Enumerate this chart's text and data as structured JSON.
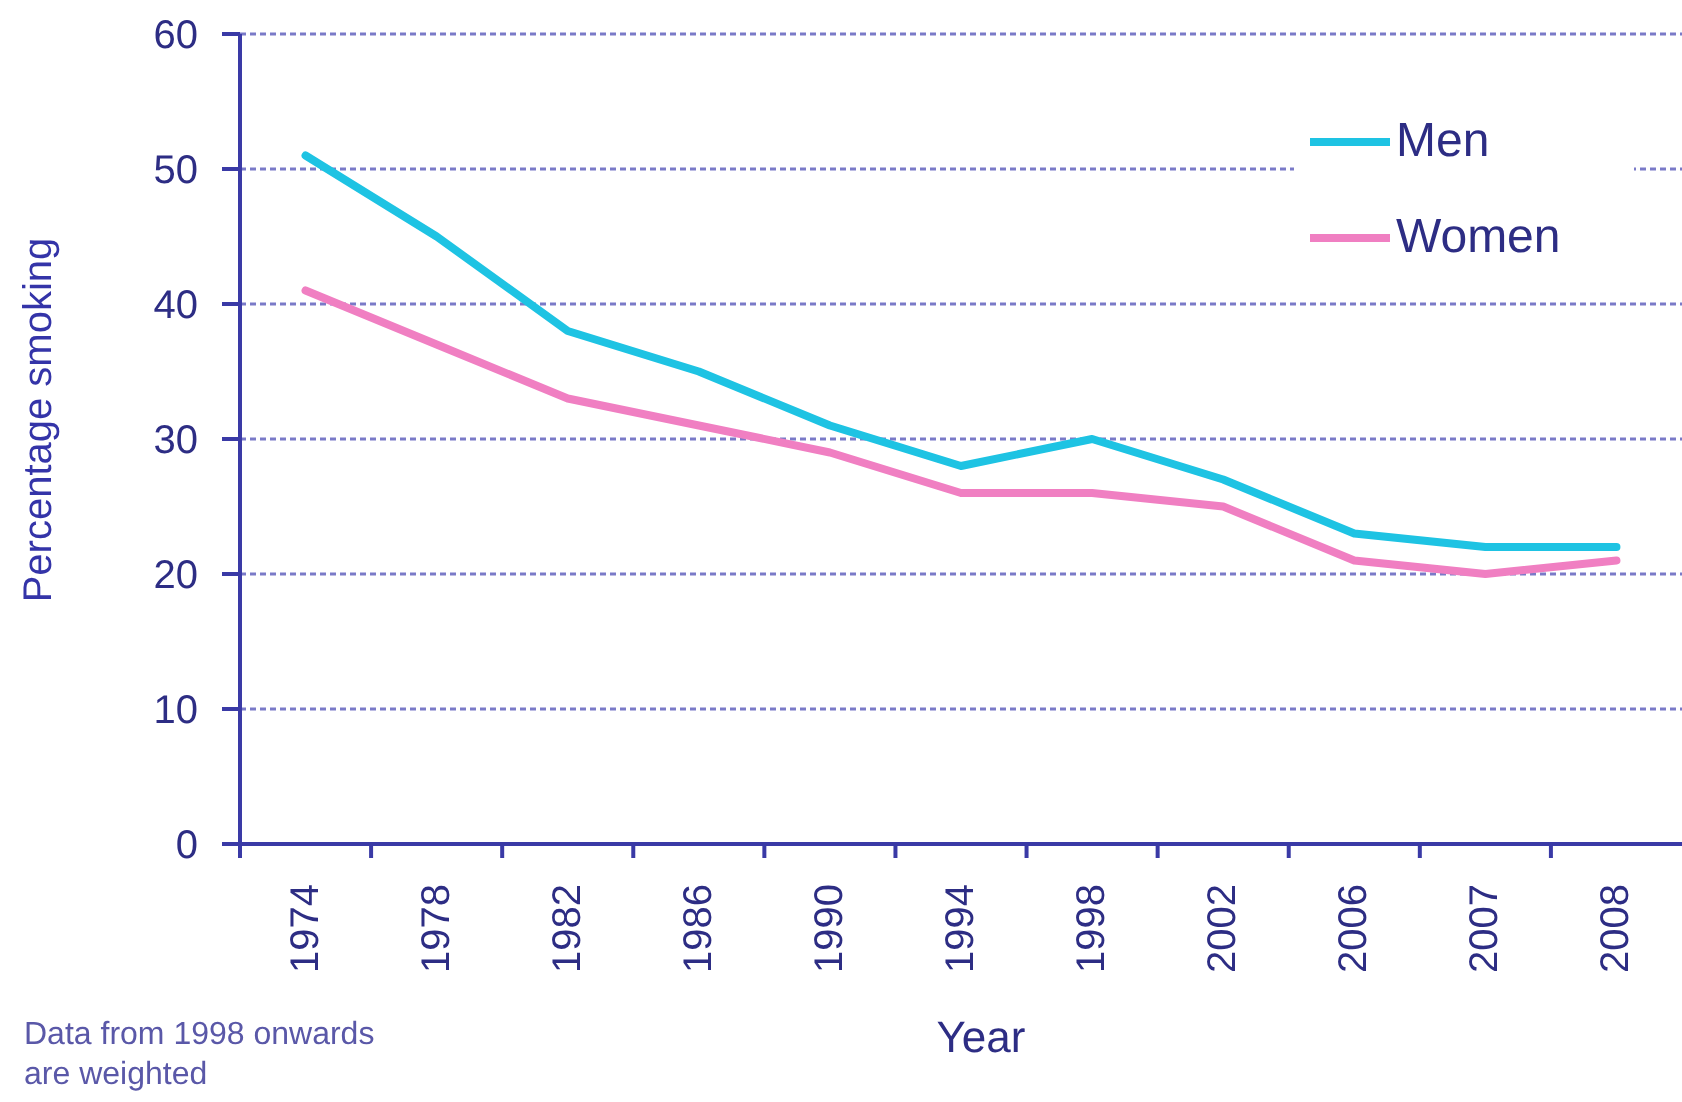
{
  "chart_data": {
    "type": "line",
    "xlabel": "Year",
    "ylabel": "Percentage smoking",
    "categories": [
      "1974",
      "1978",
      "1982",
      "1986",
      "1990",
      "1994",
      "1998",
      "2002",
      "2006",
      "2007",
      "2008"
    ],
    "series": [
      {
        "name": "Men",
        "color": "#1ec3e3",
        "values": [
          51,
          45,
          38,
          35,
          31,
          28,
          30,
          27,
          23,
          22,
          22
        ]
      },
      {
        "name": "Women",
        "color": "#f07fc2",
        "values": [
          41,
          37,
          33,
          31,
          29,
          26,
          26,
          25,
          21,
          20,
          21
        ]
      }
    ],
    "ylim": [
      0,
      60
    ],
    "yticks": [
      0,
      10,
      20,
      30,
      40,
      50,
      60
    ],
    "grid": "y",
    "legend": "top right",
    "annotations": [
      "Data from 1998 onwards are weighted"
    ]
  }
}
